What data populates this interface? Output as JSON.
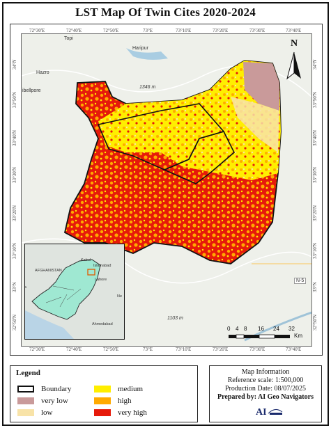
{
  "title": "LST  Map Of Twin Cites 2020-2024",
  "ticks": {
    "top": [
      "72°30'E",
      "72°40'E",
      "72°50'E",
      "73°E",
      "73°10'E",
      "73°20'E",
      "73°30'E",
      "73°40'E"
    ],
    "bottom": [
      "72°30'E",
      "72°40'E",
      "72°50'E",
      "73°E",
      "73°10'E",
      "73°20'E",
      "73°30'E",
      "73°40'E"
    ],
    "left": [
      "34°N",
      "33°50'N",
      "33°40'N",
      "33°30'N",
      "33°20'N",
      "33°10'N",
      "33°N",
      "32°50'N"
    ],
    "right": [
      "34°N",
      "33°50'N",
      "33°40'N",
      "33°30'N",
      "33°20'N",
      "33°10'N",
      "33°N",
      "32°50'N"
    ]
  },
  "places": {
    "topi": "Topi",
    "haripur": "Haripur",
    "hazro": "Hazro",
    "campbellpore": "ibellpore",
    "elev1": "1346 m",
    "elev2": "1103 m",
    "n5": "N-5"
  },
  "north_label": "N",
  "inset": {
    "afghanistan": "AFGHANISTAN",
    "kabul": "Kabul",
    "islamabad": "Islamabad",
    "lahore": "Lahore",
    "jewal": "ewal",
    "ne": "Ne",
    "ahmedabad": "Ahmedabad",
    "ta": "Ta"
  },
  "scale": {
    "labels": [
      "0",
      "4",
      "8",
      "16",
      "24",
      "32"
    ],
    "unit": "Km"
  },
  "legend": {
    "title": "Legend",
    "items": [
      {
        "label": "Boundary",
        "color": "#ffffff",
        "border": "#111111"
      },
      {
        "label": "very low",
        "color": "#c99a9a"
      },
      {
        "label": "low",
        "color": "#f8e3a8"
      },
      {
        "label": "medium",
        "color": "#ffee00"
      },
      {
        "label": "high",
        "color": "#ffaa00"
      },
      {
        "label": "very high",
        "color": "#e61a0a"
      }
    ]
  },
  "info": {
    "heading": "Map Information",
    "scale": "Reference scale: 1:500,000",
    "date": "Production Date: 08/07/2025",
    "prepared": "Prepared by: AI Geo Navigators"
  }
}
